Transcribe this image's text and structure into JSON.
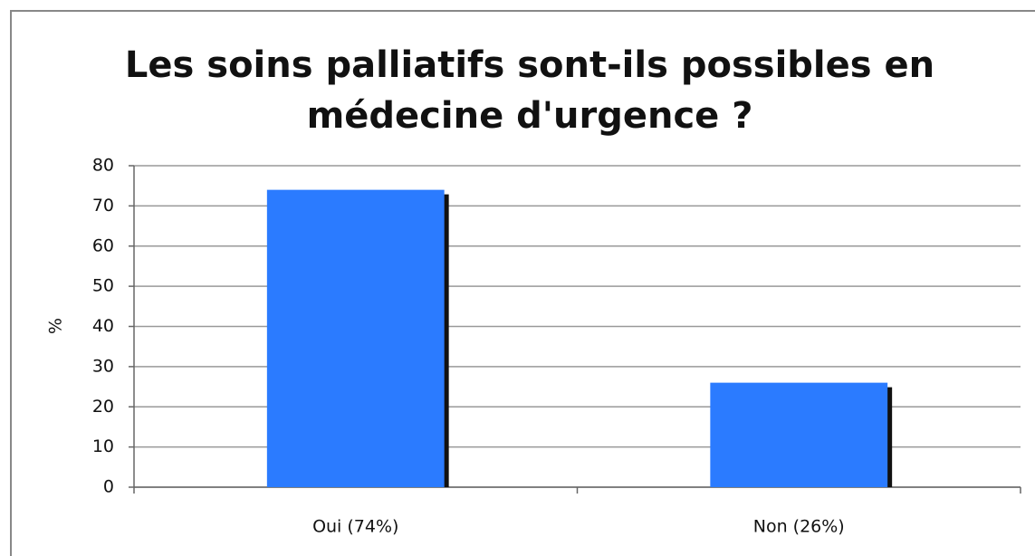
{
  "chart_data": {
    "type": "bar",
    "title": [
      "Les soins palliatifs sont-ils possibles en",
      "médecine d'urgence ?"
    ],
    "ylabel": "%",
    "categories": [
      "Oui (74%)",
      "Non (26%)"
    ],
    "values": [
      74,
      26
    ],
    "color": "#2b7bff",
    "ylim": [
      0,
      80
    ],
    "yticks": [
      0,
      10,
      20,
      30,
      40,
      50,
      60,
      70,
      80
    ],
    "grid": true
  }
}
